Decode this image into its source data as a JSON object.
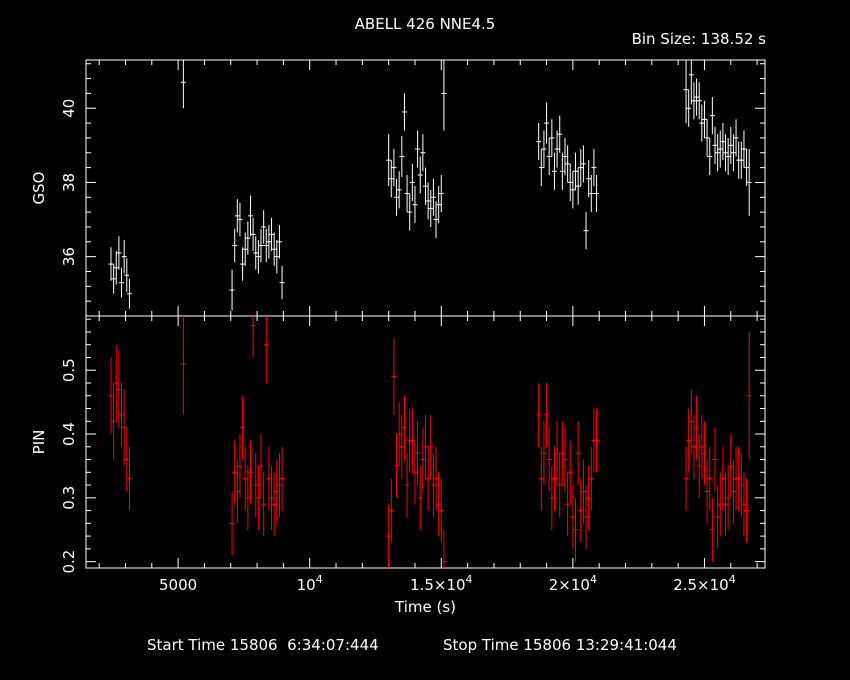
{
  "header": {
    "title": "ABELL 426 NNE4.5",
    "bin_size": "Bin Size: 138.52 s"
  },
  "footer": {
    "start_time": "Start Time 15806  6:34:07:444",
    "stop_time": "Stop Time 15806 13:29:41:044"
  },
  "colors": {
    "background": "#000000",
    "gso": "#ffffff",
    "pin": "#ff0000",
    "axes": "#ffffff"
  },
  "chart_data": [
    {
      "type": "scatter",
      "panel": "top",
      "ylabel": "GSO",
      "xlim": [
        1500,
        27300
      ],
      "ylim": [
        34.4,
        41.3
      ],
      "yticks": [
        36,
        38,
        40
      ],
      "ytick_labels": [
        "36",
        "38",
        "40"
      ],
      "series": [
        {
          "error_bars": true,
          "x": [
            2450,
            2550,
            2650,
            2750,
            2850,
            2950,
            3050,
            3150,
            5200,
            7050,
            7150,
            7250,
            7350,
            7450,
            7550,
            7650,
            7750,
            7850,
            7950,
            8050,
            8150,
            8250,
            8350,
            8450,
            8550,
            8650,
            8750,
            8850,
            8950,
            13000,
            13100,
            13200,
            13300,
            13400,
            13500,
            13600,
            13700,
            13800,
            13900,
            14000,
            14100,
            14200,
            14300,
            14400,
            14500,
            14600,
            14700,
            14800,
            14900,
            15000,
            15100,
            18700,
            18800,
            18900,
            19000,
            19100,
            19200,
            19300,
            19400,
            19500,
            19600,
            19700,
            19800,
            19900,
            20000,
            20100,
            20200,
            20300,
            20400,
            20500,
            20600,
            20700,
            20800,
            20900,
            24300,
            24400,
            24500,
            24600,
            24700,
            24800,
            24900,
            25000,
            25100,
            25200,
            25300,
            25400,
            25500,
            25600,
            25700,
            25800,
            25900,
            26000,
            26100,
            26200,
            26300,
            26400,
            26500,
            26600,
            26700
          ],
          "y": [
            35.8,
            35.4,
            35.7,
            36.1,
            35.3,
            36.0,
            35.5,
            35.0,
            40.7,
            35.1,
            36.3,
            37.1,
            37.0,
            35.8,
            36.2,
            36.5,
            37.1,
            36.6,
            36.1,
            36.0,
            36.3,
            36.8,
            36.3,
            36.4,
            36.6,
            36.2,
            36.0,
            36.4,
            35.3,
            38.6,
            38.1,
            38.4,
            37.6,
            37.8,
            38.7,
            39.9,
            37.7,
            37.2,
            38.0,
            37.4,
            38.9,
            38.2,
            38.8,
            37.9,
            37.5,
            37.3,
            37.6,
            37.0,
            37.4,
            37.7,
            40.4,
            39.1,
            38.4,
            38.9,
            39.6,
            38.7,
            39.2,
            38.3,
            38.9,
            39.3,
            38.3,
            38.7,
            38.5,
            38.0,
            37.8,
            38.3,
            37.9,
            38.4,
            38.5,
            36.7,
            38.1,
            37.7,
            38.4,
            37.7,
            40.5,
            40.0,
            40.9,
            40.2,
            40.3,
            40.2,
            39.6,
            39.7,
            39.2,
            38.7,
            39.8,
            39.0,
            38.8,
            38.9,
            39.1,
            38.8,
            38.7,
            39.0,
            38.8,
            39.2,
            38.6,
            38.6,
            38.9,
            38.4,
            38.0
          ],
          "yerr": [
            0.45,
            0.4,
            0.45,
            0.45,
            0.4,
            0.45,
            0.45,
            0.4,
            0.7,
            0.55,
            0.45,
            0.45,
            0.45,
            0.45,
            0.45,
            0.45,
            0.55,
            0.45,
            0.45,
            0.45,
            0.45,
            0.45,
            0.45,
            0.45,
            0.45,
            0.45,
            0.45,
            0.45,
            0.45,
            0.7,
            0.5,
            0.5,
            0.5,
            0.5,
            0.55,
            0.5,
            0.5,
            0.5,
            0.5,
            0.5,
            0.5,
            0.5,
            0.5,
            0.5,
            0.5,
            0.5,
            0.5,
            0.5,
            0.5,
            0.5,
            1.0,
            0.5,
            0.5,
            0.5,
            0.55,
            0.5,
            0.5,
            0.5,
            0.5,
            0.5,
            0.5,
            0.5,
            0.5,
            0.5,
            0.5,
            0.5,
            0.5,
            0.5,
            0.5,
            0.5,
            0.5,
            0.5,
            0.5,
            0.5,
            0.9,
            0.5,
            0.8,
            0.5,
            0.5,
            0.5,
            0.5,
            0.5,
            0.5,
            0.5,
            0.5,
            0.5,
            0.5,
            0.5,
            0.5,
            0.5,
            0.5,
            0.5,
            0.5,
            0.5,
            0.5,
            0.5,
            0.5,
            0.5,
            0.9
          ]
        }
      ]
    },
    {
      "type": "scatter",
      "panel": "bottom",
      "ylabel": "PIN",
      "xlabel": "Time (s)",
      "xlim": [
        1500,
        27300
      ],
      "ylim": [
        0.19,
        0.585
      ],
      "yticks": [
        0.2,
        0.3,
        0.4,
        0.5
      ],
      "ytick_labels": [
        "0.2",
        "0.3",
        "0.4",
        "0.5"
      ],
      "xticks": [
        5000,
        10000,
        15000,
        20000,
        25000
      ],
      "xtick_labels": [
        {
          "base": "5000",
          "exp": ""
        },
        {
          "base": "10",
          "exp": "4"
        },
        {
          "base": "1.5×10",
          "exp": "4"
        },
        {
          "base": "2×10",
          "exp": "4"
        },
        {
          "base": "2.5×10",
          "exp": "4"
        }
      ],
      "series": [
        {
          "error_bars": true,
          "x": [
            2450,
            2550,
            2650,
            2750,
            2850,
            2950,
            3050,
            3150,
            5200,
            7050,
            7150,
            7250,
            7350,
            7450,
            7550,
            7650,
            7750,
            7850,
            7950,
            8050,
            8150,
            8250,
            8350,
            8450,
            8550,
            8650,
            8750,
            8850,
            8950,
            13000,
            13100,
            13200,
            13300,
            13400,
            13500,
            13600,
            13700,
            13800,
            13900,
            14000,
            14100,
            14200,
            14300,
            14400,
            14500,
            14600,
            14700,
            14800,
            14900,
            15000,
            15100,
            18700,
            18800,
            18900,
            19000,
            19100,
            19200,
            19300,
            19400,
            19500,
            19600,
            19700,
            19800,
            19900,
            20000,
            20100,
            20200,
            20300,
            20400,
            20500,
            20600,
            20700,
            20800,
            20900,
            24300,
            24400,
            24500,
            24600,
            24700,
            24800,
            24900,
            25000,
            25100,
            25200,
            25300,
            25400,
            25500,
            25600,
            25700,
            25800,
            25900,
            26000,
            26100,
            26200,
            26300,
            26400,
            26500,
            26600,
            26700
          ],
          "y": [
            0.46,
            0.42,
            0.48,
            0.47,
            0.43,
            0.41,
            0.36,
            0.33,
            0.51,
            0.26,
            0.34,
            0.31,
            0.35,
            0.41,
            0.33,
            0.3,
            0.34,
            0.57,
            0.32,
            0.3,
            0.35,
            0.29,
            0.54,
            0.33,
            0.3,
            0.29,
            0.31,
            0.32,
            0.33,
            0.24,
            0.28,
            0.49,
            0.35,
            0.4,
            0.38,
            0.41,
            0.32,
            0.39,
            0.39,
            0.34,
            0.37,
            0.3,
            0.36,
            0.38,
            0.33,
            0.38,
            0.32,
            0.33,
            0.29,
            0.28,
            0.2,
            0.43,
            0.33,
            0.37,
            0.43,
            0.36,
            0.3,
            0.33,
            0.37,
            0.32,
            0.37,
            0.36,
            0.29,
            0.34,
            0.27,
            0.25,
            0.37,
            0.28,
            0.31,
            0.27,
            0.3,
            0.33,
            0.39,
            0.39,
            0.33,
            0.39,
            0.42,
            0.38,
            0.41,
            0.35,
            0.38,
            0.37,
            0.31,
            0.33,
            0.25,
            0.36,
            0.27,
            0.29,
            0.33,
            0.29,
            0.3,
            0.35,
            0.31,
            0.33,
            0.33,
            0.32,
            0.29,
            0.28,
            0.46
          ],
          "yerr": [
            0.06,
            0.06,
            0.06,
            0.06,
            0.05,
            0.06,
            0.05,
            0.05,
            0.08,
            0.05,
            0.05,
            0.05,
            0.05,
            0.05,
            0.05,
            0.05,
            0.05,
            0.05,
            0.05,
            0.05,
            0.05,
            0.05,
            0.06,
            0.05,
            0.05,
            0.05,
            0.05,
            0.05,
            0.05,
            0.05,
            0.05,
            0.06,
            0.05,
            0.05,
            0.05,
            0.05,
            0.05,
            0.05,
            0.05,
            0.05,
            0.05,
            0.05,
            0.05,
            0.05,
            0.05,
            0.05,
            0.05,
            0.05,
            0.05,
            0.05,
            0.05,
            0.05,
            0.05,
            0.05,
            0.05,
            0.05,
            0.05,
            0.05,
            0.05,
            0.05,
            0.05,
            0.05,
            0.05,
            0.05,
            0.05,
            0.05,
            0.05,
            0.05,
            0.05,
            0.05,
            0.05,
            0.05,
            0.05,
            0.05,
            0.05,
            0.05,
            0.05,
            0.05,
            0.05,
            0.05,
            0.05,
            0.05,
            0.05,
            0.05,
            0.05,
            0.05,
            0.05,
            0.05,
            0.05,
            0.05,
            0.05,
            0.05,
            0.05,
            0.05,
            0.05,
            0.05,
            0.05,
            0.05,
            0.1
          ]
        }
      ]
    }
  ]
}
